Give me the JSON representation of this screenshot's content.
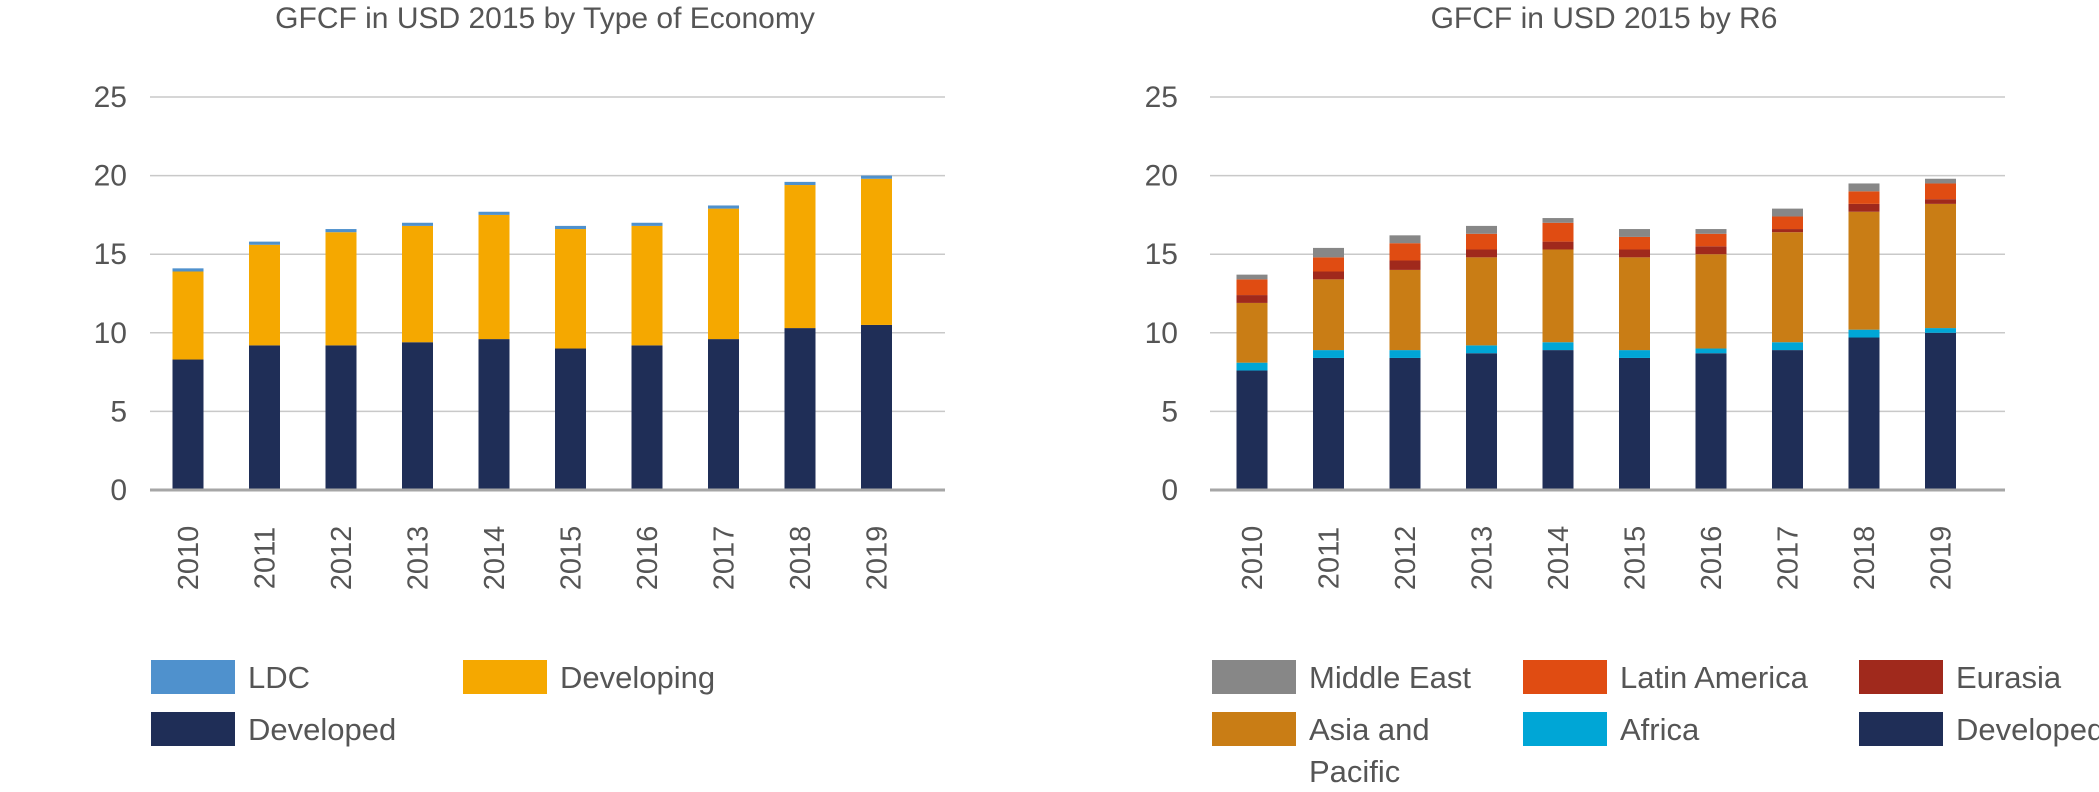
{
  "chart_data": [
    {
      "type": "bar",
      "stacked": true,
      "title": "GFCF in USD 2015 by Type of Economy",
      "categories": [
        "2010",
        "2011",
        "2012",
        "2013",
        "2014",
        "2015",
        "2016",
        "2017",
        "2018",
        "2019"
      ],
      "ylim": [
        0,
        25
      ],
      "yticks": [
        0,
        5,
        10,
        15,
        20,
        25
      ],
      "grid": true,
      "legend_position": "bottom",
      "series": [
        {
          "name": "Developed",
          "color": "#1f2e57",
          "values": [
            8.3,
            9.2,
            9.2,
            9.4,
            9.6,
            9.0,
            9.2,
            9.6,
            10.3,
            10.5
          ]
        },
        {
          "name": "Developing",
          "color": "#f5a800",
          "values": [
            5.6,
            6.4,
            7.2,
            7.4,
            7.9,
            7.6,
            7.6,
            8.3,
            9.1,
            9.3
          ]
        },
        {
          "name": "LDC",
          "color": "#4f91cd",
          "values": [
            0.2,
            0.2,
            0.2,
            0.2,
            0.2,
            0.2,
            0.2,
            0.2,
            0.2,
            0.2
          ]
        }
      ],
      "legend_order": [
        "LDC",
        "Developing",
        "Developed"
      ]
    },
    {
      "type": "bar",
      "stacked": true,
      "title": "GFCF in USD 2015 by R6",
      "categories": [
        "2010",
        "2011",
        "2012",
        "2013",
        "2014",
        "2015",
        "2016",
        "2017",
        "2018",
        "2019"
      ],
      "ylim": [
        0,
        25
      ],
      "yticks": [
        0,
        5,
        10,
        15,
        20,
        25
      ],
      "grid": true,
      "legend_position": "bottom",
      "series": [
        {
          "name": "Developed",
          "color": "#1f2e57",
          "values": [
            7.6,
            8.4,
            8.4,
            8.7,
            8.9,
            8.4,
            8.7,
            8.9,
            9.7,
            10.0
          ]
        },
        {
          "name": "Africa",
          "color": "#00a6d6",
          "values": [
            0.5,
            0.5,
            0.5,
            0.5,
            0.5,
            0.5,
            0.3,
            0.5,
            0.5,
            0.3
          ]
        },
        {
          "name": "Asia and Pacific",
          "color": "#c97d15",
          "values": [
            3.8,
            4.5,
            5.1,
            5.6,
            5.9,
            5.9,
            6.0,
            7.0,
            7.5,
            7.9
          ]
        },
        {
          "name": "Eurasia",
          "color": "#a0291c",
          "values": [
            0.5,
            0.5,
            0.6,
            0.5,
            0.5,
            0.5,
            0.5,
            0.2,
            0.5,
            0.3
          ]
        },
        {
          "name": "Latin America",
          "color": "#e04c12",
          "values": [
            1.0,
            0.9,
            1.1,
            1.0,
            1.2,
            0.8,
            0.8,
            0.8,
            0.8,
            1.0
          ]
        },
        {
          "name": "Middle East",
          "color": "#878787",
          "values": [
            0.3,
            0.6,
            0.5,
            0.5,
            0.3,
            0.5,
            0.3,
            0.5,
            0.5,
            0.3
          ]
        }
      ],
      "legend_order": [
        "Middle East",
        "Latin America",
        "Eurasia",
        "Asia and Pacific",
        "Africa",
        "Developed"
      ]
    }
  ]
}
